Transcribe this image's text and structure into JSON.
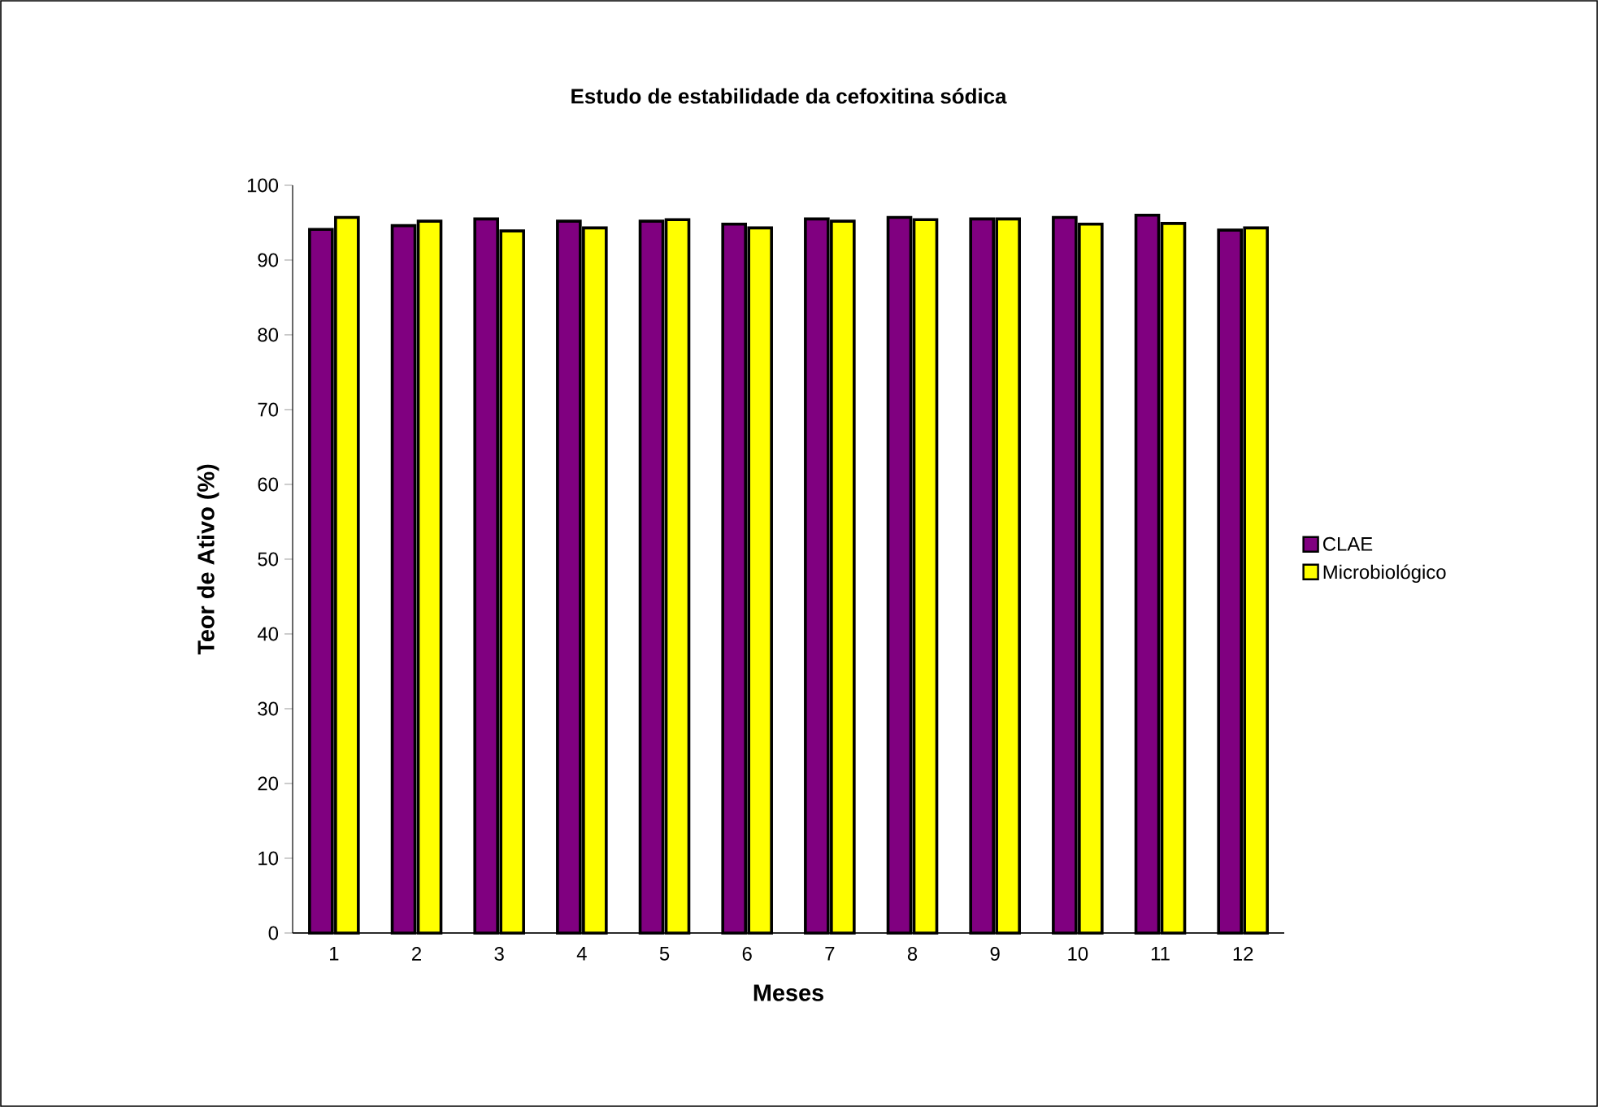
{
  "chart_data": {
    "type": "bar",
    "title": "Estudo de estabilidade da cefoxitina sódica",
    "xlabel": "Meses",
    "ylabel": "Teor de Ativo (%)",
    "categories": [
      "1",
      "2",
      "3",
      "4",
      "5",
      "6",
      "7",
      "8",
      "9",
      "10",
      "11",
      "12"
    ],
    "series": [
      {
        "name": "CLAE",
        "color": "#800080",
        "values": [
          94.1,
          94.6,
          95.5,
          95.2,
          95.2,
          94.8,
          95.5,
          95.7,
          95.5,
          95.7,
          96.0,
          94.0
        ]
      },
      {
        "name": "Microbiológico",
        "color": "#ffff00",
        "values": [
          95.7,
          95.2,
          93.9,
          94.3,
          95.4,
          94.3,
          95.2,
          95.4,
          95.5,
          94.8,
          94.9,
          94.3
        ]
      }
    ],
    "ylim": [
      0,
      100
    ],
    "yticks": [
      0,
      10,
      20,
      30,
      40,
      50,
      60,
      70,
      80,
      90,
      100
    ],
    "grid": false,
    "legend": "right"
  }
}
